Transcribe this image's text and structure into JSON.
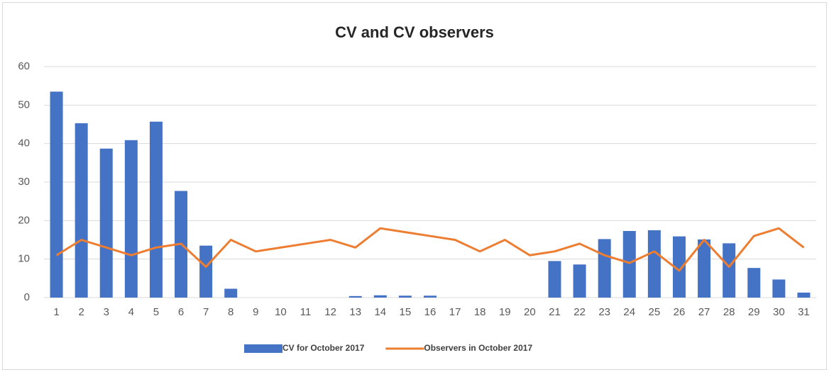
{
  "chart_data": {
    "type": "bar",
    "title": "CV and CV observers",
    "categories": [
      "1",
      "2",
      "3",
      "4",
      "5",
      "6",
      "7",
      "8",
      "9",
      "10",
      "11",
      "12",
      "13",
      "14",
      "15",
      "16",
      "17",
      "18",
      "19",
      "20",
      "21",
      "22",
      "23",
      "24",
      "25",
      "26",
      "27",
      "28",
      "29",
      "30",
      "31"
    ],
    "series": [
      {
        "name": "CV for October 2017",
        "type": "bar",
        "color": "#4472c4",
        "values": [
          53.5,
          45.3,
          38.7,
          40.9,
          45.7,
          27.7,
          13.5,
          2.3,
          0,
          0,
          0,
          0,
          0.4,
          0.6,
          0.5,
          0.5,
          0,
          0,
          0,
          0,
          9.5,
          8.6,
          15.2,
          17.3,
          17.5,
          15.9,
          15.1,
          14.1,
          7.7,
          4.7,
          1.3
        ]
      },
      {
        "name": "Observers in October 2017",
        "type": "line",
        "color": "#ed7d31",
        "values": [
          11,
          15,
          13,
          11,
          13,
          14,
          8,
          15,
          12,
          13,
          14,
          15,
          13,
          18,
          17,
          16,
          15,
          12,
          15,
          11,
          12,
          14,
          11,
          9,
          12,
          7,
          15,
          8,
          16,
          18,
          13
        ]
      }
    ],
    "ylim": [
      0,
      60
    ],
    "yticks": [
      0,
      10,
      20,
      30,
      40,
      50,
      60
    ],
    "grid": true,
    "legend": "bottom"
  }
}
